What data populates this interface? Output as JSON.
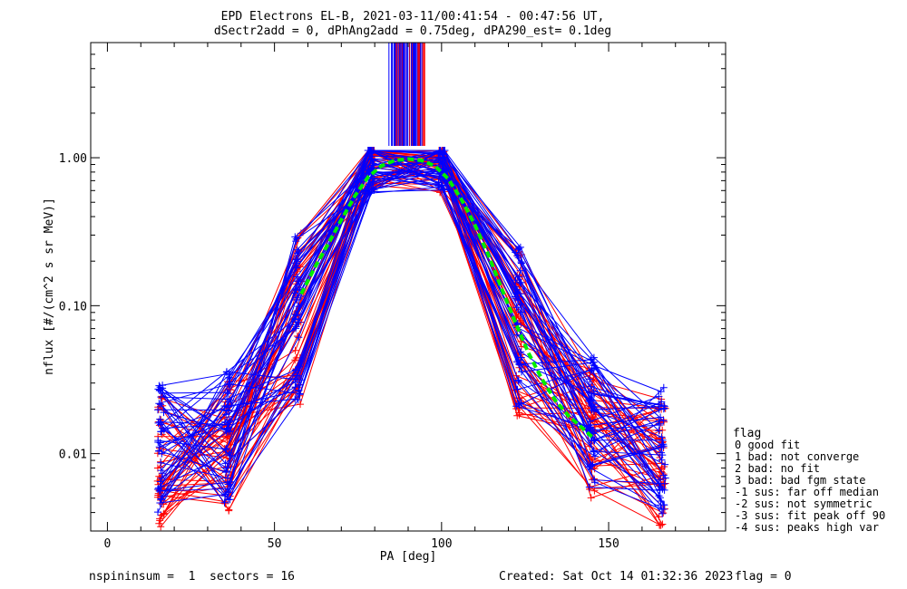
{
  "chart_data": {
    "type": "line",
    "title": "EPD Electrons EL-B, 2021-03-11/00:41:54 - 00:47:56 UT,",
    "subtitle": "dSectr2add = 0, dPhAng2add = 0.75deg, dPA290_est=   0.1deg",
    "xlabel": "PA [deg]",
    "ylabel": "nflux [#/(cm^2 s sr MeV)]",
    "xlim": [
      -5,
      185
    ],
    "ylim": [
      0.003,
      6
    ],
    "yscale": "log",
    "x_ticks": [
      0,
      50,
      100,
      150
    ],
    "y_ticks": [
      0.01,
      0.1,
      1.0
    ],
    "y_tick_labels": [
      "0.01",
      "0.10",
      "1.00"
    ],
    "pa_bins": [
      16,
      36,
      57,
      79,
      100,
      123,
      145,
      166
    ],
    "series": [
      {
        "color": "#0000ff",
        "note": "many scan curves",
        "typical_values": [
          0.011,
          0.013,
          0.09,
          0.85,
          0.88,
          0.08,
          0.016,
          0.011
        ]
      },
      {
        "color": "#ff0000",
        "note": "many scan curves",
        "typical_values": [
          0.009,
          0.011,
          0.08,
          0.9,
          0.86,
          0.07,
          0.014,
          0.009
        ]
      }
    ],
    "fit": {
      "color": "#00ee00",
      "x": [
        58,
        62,
        66,
        70,
        74,
        78,
        82,
        86,
        90,
        94,
        98,
        102,
        106,
        110,
        114,
        118,
        122,
        126,
        130,
        134,
        138,
        142,
        145
      ],
      "y": [
        0.12,
        0.18,
        0.26,
        0.38,
        0.55,
        0.74,
        0.88,
        0.96,
        0.98,
        0.96,
        0.88,
        0.72,
        0.52,
        0.35,
        0.22,
        0.13,
        0.078,
        0.048,
        0.032,
        0.023,
        0.018,
        0.015,
        0.013
      ]
    },
    "peak_lines": {
      "x_from": 84,
      "x_to": 95,
      "color_a": "#0000ff",
      "color_b": "#ff0000"
    }
  },
  "legend": {
    "title": "flag",
    "items": [
      " 0 good fit",
      " 1 bad: not converge",
      " 2 bad: no fit",
      " 3 bad: bad fgm state",
      "-1 sus: far off median",
      "-2 sus: not symmetric",
      "-3 sus: fit peak off 90",
      "-4 sus: peaks high var"
    ]
  },
  "footer": {
    "left": "nspininsum =  1  sectors = 16",
    "created": "Created: Sat Oct 14 01:32:36 2023",
    "flag": "flag = 0"
  }
}
